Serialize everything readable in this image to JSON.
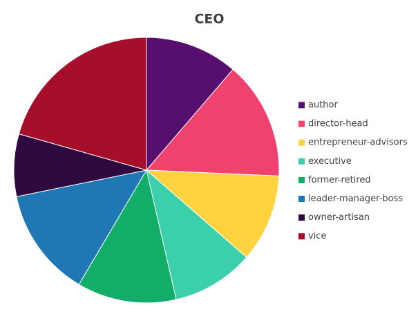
{
  "chart_data": {
    "type": "pie",
    "title": "CEO",
    "categories": [
      "author",
      "director-head",
      "entrepreneur-advisors",
      "executive",
      "former-retired",
      "leader-manager-boss",
      "owner-artisan",
      "vice"
    ],
    "values": [
      11.3,
      14.4,
      10.7,
      10.0,
      12.1,
      13.3,
      7.6,
      20.6
    ],
    "colors": [
      "#560f6e",
      "#ef426f",
      "#ffd23f",
      "#3bcfab",
      "#13ad6a",
      "#1f77b4",
      "#2e0a40",
      "#a50f2c"
    ],
    "legend": "right"
  }
}
